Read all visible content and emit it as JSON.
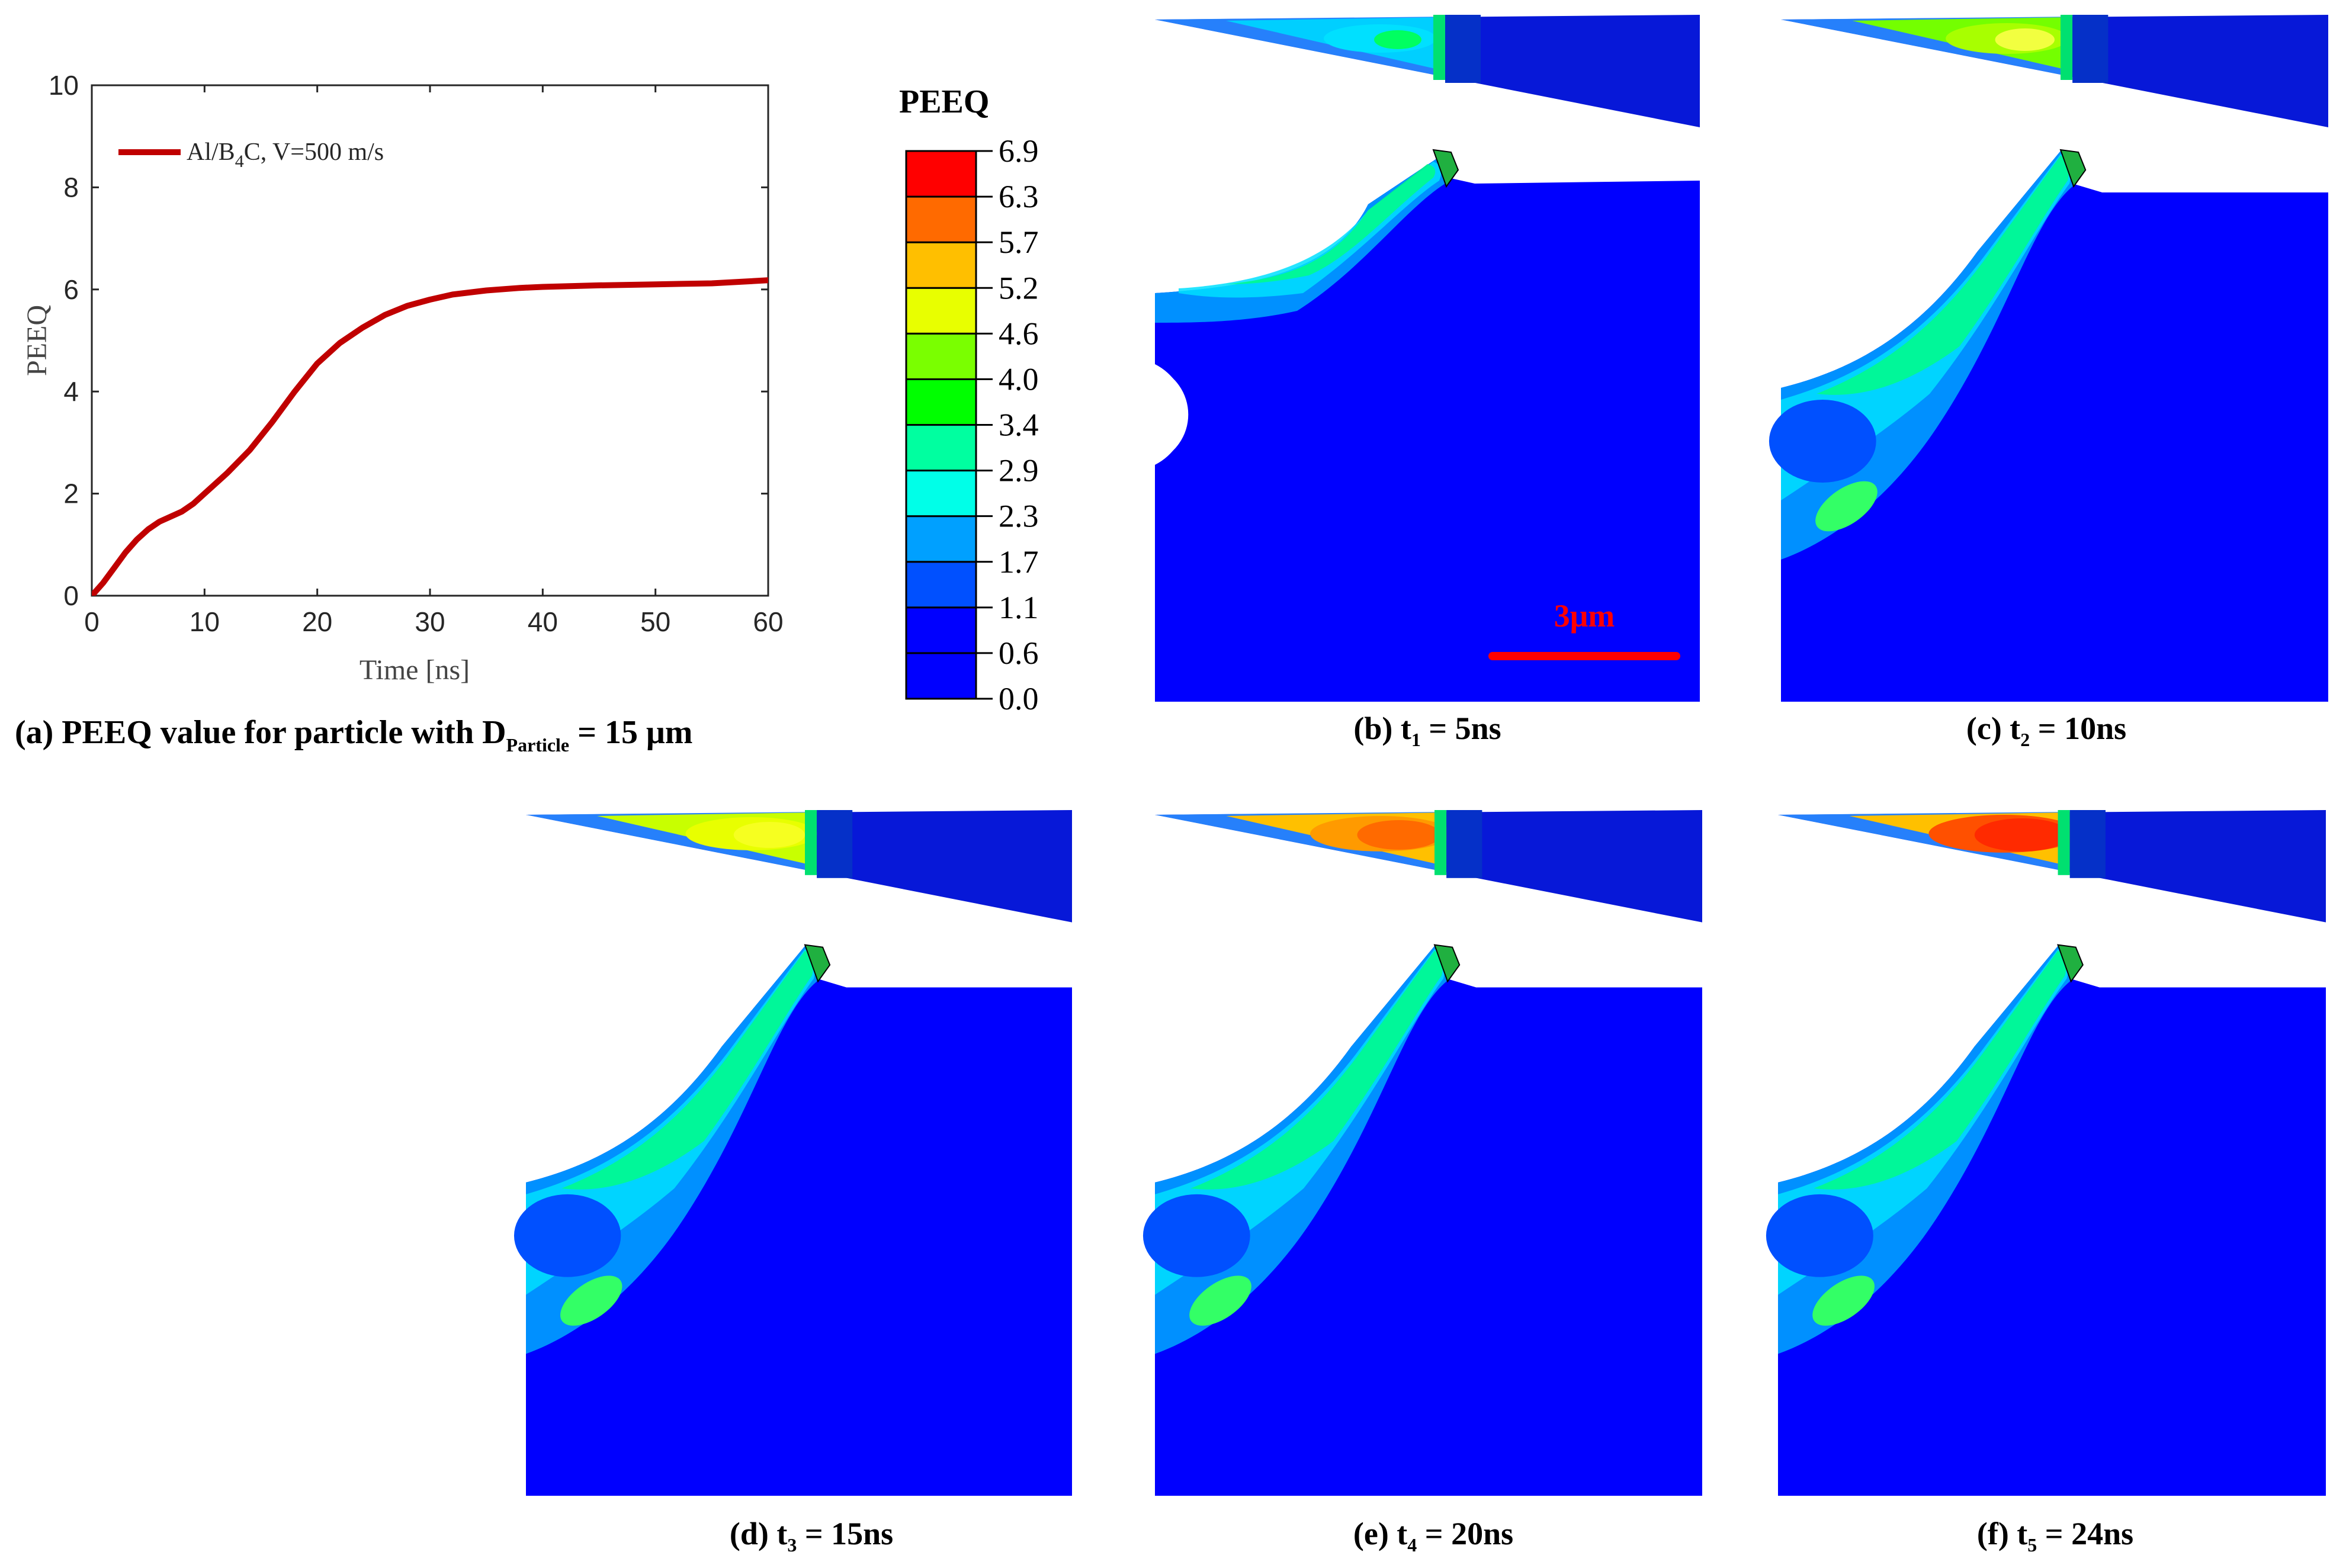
{
  "colors": {
    "curve": "#c00000",
    "deep_blue": "#0a1ee0",
    "scale_bar": "#ff0000",
    "levels": [
      "#0000ff",
      "#0050ff",
      "#00a0ff",
      "#00ffe8",
      "#00ffa0",
      "#00ff00",
      "#7aff00",
      "#e8ff00",
      "#ffbf00",
      "#ff6a00",
      "#ff0000"
    ]
  },
  "panel_a": {
    "caption": {
      "prefix": "(a) PEEQ  value for particle with D",
      "subscript": "Particle",
      "suffix": " = 15 μm"
    }
  },
  "legend": {
    "title": "PEEQ",
    "labels": [
      "6.9",
      "6.3",
      "5.7",
      "5.2",
      "4.6",
      "4.0",
      "3.4",
      "2.9",
      "2.3",
      "1.7",
      "1.1",
      "0.6",
      "0.0"
    ]
  },
  "panels": [
    {
      "id": "b",
      "caption_prefix": "(b) t",
      "caption_sub": "1",
      "caption_suffix": " = 5ns"
    },
    {
      "id": "c",
      "caption_prefix": "(c) t",
      "caption_sub": "2",
      "caption_suffix": " = 10ns"
    },
    {
      "id": "d",
      "caption_prefix": "(d) t",
      "caption_sub": "3",
      "caption_suffix": " = 15ns"
    },
    {
      "id": "e",
      "caption_prefix": "(e) t",
      "caption_sub": "4",
      "caption_suffix": " = 20ns"
    },
    {
      "id": "f",
      "caption_prefix": "(f) t",
      "caption_sub": "5",
      "caption_suffix": " = 24ns"
    }
  ],
  "scale_bar": {
    "label": "3μm"
  },
  "chart_data": {
    "type": "line",
    "title": "",
    "xlabel": "Time [ns]",
    "ylabel": "PEEQ",
    "xlim": [
      0,
      60
    ],
    "ylim": [
      0,
      10
    ],
    "xticks": [
      0,
      10,
      20,
      30,
      40,
      50,
      60
    ],
    "yticks": [
      0,
      2,
      4,
      6,
      8,
      10
    ],
    "legend": "top-left",
    "series": [
      {
        "name": "Al/B4C, V=500 m/s",
        "name_base": "Al/B",
        "name_sub": "4",
        "name_tail": "C, V=500 m/s",
        "x": [
          0,
          1,
          2,
          3,
          4,
          5,
          6,
          7,
          8,
          9,
          10,
          12,
          14,
          16,
          18,
          20,
          22,
          24,
          26,
          28,
          30,
          32,
          35,
          38,
          40,
          45,
          50,
          55,
          60
        ],
        "y": [
          0,
          0.25,
          0.55,
          0.85,
          1.1,
          1.3,
          1.45,
          1.55,
          1.65,
          1.8,
          2.0,
          2.4,
          2.85,
          3.4,
          4.0,
          4.55,
          4.95,
          5.25,
          5.5,
          5.68,
          5.8,
          5.9,
          5.98,
          6.03,
          6.05,
          6.08,
          6.1,
          6.12,
          6.18
        ]
      }
    ]
  }
}
